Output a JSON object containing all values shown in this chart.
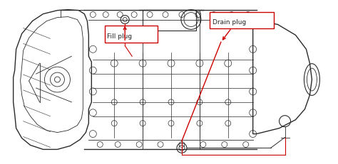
{
  "background_color": "#ffffff",
  "fig_width": 4.74,
  "fig_height": 2.32,
  "dpi": 100,
  "label_fill_plug": "Fill plug",
  "label_drain_plug": "Drain plug",
  "annotation_color": "#cc0000",
  "box_edge_color": "#cc0000",
  "box_face_color": "#ffffff",
  "text_color": "#222222",
  "font_size": 6.5,
  "ec": "#2a2a2a"
}
